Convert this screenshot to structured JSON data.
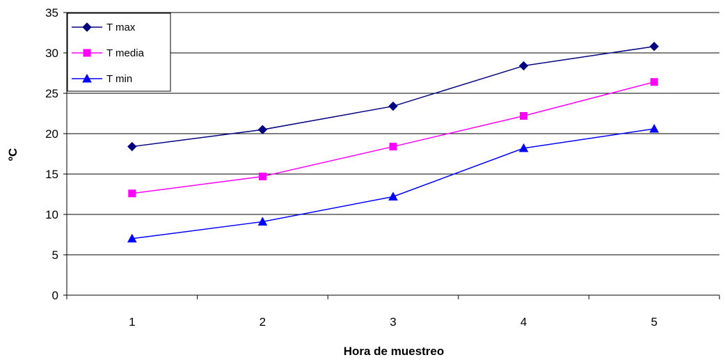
{
  "chart_data": {
    "type": "line",
    "title": "",
    "xlabel": "Hora de muestreo",
    "ylabel": "ºC",
    "categories": [
      "1",
      "2",
      "3",
      "4",
      "5"
    ],
    "ylim": [
      0,
      35
    ],
    "yticks": [
      "0",
      "5",
      "10",
      "15",
      "20",
      "25",
      "30",
      "35"
    ],
    "grid": "horizontal",
    "legend_position": "top-left",
    "series": [
      {
        "name": "T max",
        "color": "#000080",
        "marker": "diamond",
        "values": [
          18.4,
          20.5,
          23.4,
          28.4,
          30.8
        ]
      },
      {
        "name": "T media",
        "color": "#FF00FF",
        "marker": "square",
        "values": [
          12.6,
          14.7,
          18.4,
          22.2,
          26.4
        ]
      },
      {
        "name": "T min",
        "color": "#0000FF",
        "marker": "triangle",
        "values": [
          7.0,
          9.1,
          12.2,
          18.2,
          20.6
        ]
      }
    ]
  }
}
